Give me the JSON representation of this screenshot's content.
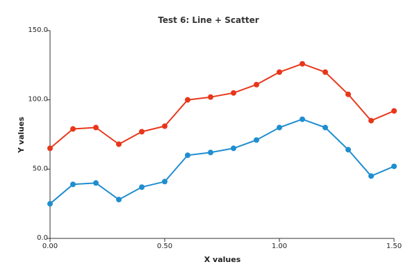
{
  "chart_data": {
    "type": "line",
    "title": "Test 6: Line + Scatter",
    "xlabel": "X values",
    "ylabel": "Y values",
    "xlim": [
      0.0,
      1.5
    ],
    "ylim": [
      0.0,
      150.0
    ],
    "x_ticks": [
      "0.00",
      "0.50",
      "1.00",
      "1.50"
    ],
    "y_ticks": [
      "0.0",
      "50.0",
      "100.0",
      "150.0"
    ],
    "grid": false,
    "x": [
      0.0,
      0.1,
      0.2,
      0.3,
      0.4,
      0.5,
      0.6,
      0.7,
      0.8,
      0.9,
      1.0,
      1.1,
      1.2,
      1.3,
      1.4,
      1.5
    ],
    "series": [
      {
        "color": "#e8361a",
        "markers": true,
        "values": [
          65,
          79,
          80,
          68,
          77,
          81,
          100,
          102,
          105,
          111,
          120,
          126,
          120,
          104,
          85,
          92
        ]
      },
      {
        "color": "#1f8ed0",
        "markers": true,
        "values": [
          25,
          39,
          40,
          28,
          37,
          41,
          60,
          62,
          65,
          71,
          80,
          86,
          80,
          64,
          45,
          52
        ]
      }
    ]
  }
}
